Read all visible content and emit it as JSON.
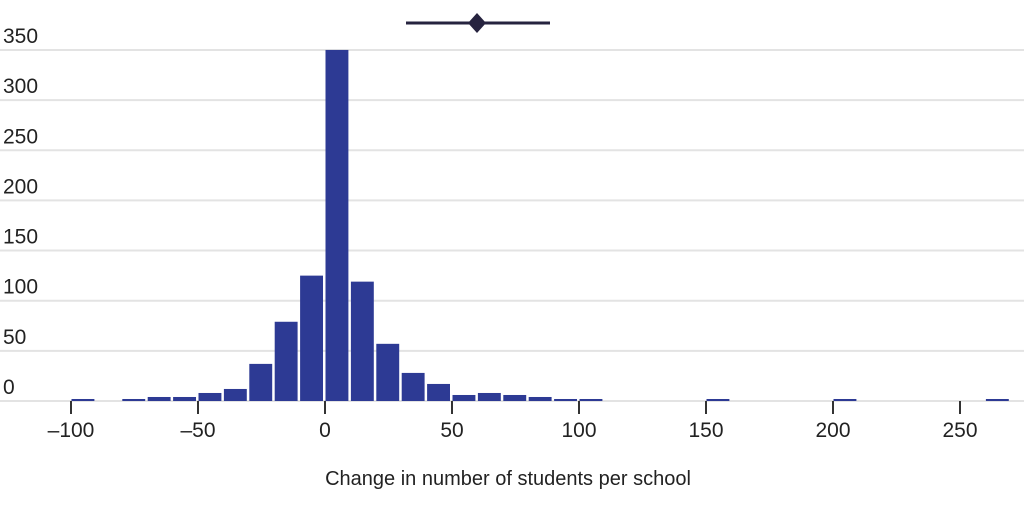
{
  "chart_data": {
    "type": "bar",
    "title": "",
    "xlabel": "Change in number of students per school",
    "ylabel": "",
    "bin_width": 10,
    "bins": [
      -100,
      -80,
      -70,
      -60,
      -50,
      -40,
      -30,
      -20,
      -10,
      0,
      10,
      20,
      30,
      40,
      50,
      60,
      70,
      80,
      90,
      100,
      150,
      200,
      260
    ],
    "values": [
      2,
      2,
      4,
      4,
      8,
      12,
      37,
      79,
      125,
      350,
      119,
      57,
      28,
      17,
      6,
      8,
      6,
      4,
      2,
      2,
      2,
      2,
      2
    ],
    "xlim": [
      -100,
      270
    ],
    "ylim": [
      0,
      350
    ],
    "xticks": [
      -100,
      -50,
      0,
      50,
      100,
      150,
      200,
      250
    ],
    "xtick_labels": [
      "–100",
      "–50",
      "0",
      "50",
      "100",
      "150",
      "200",
      "250"
    ],
    "yticks": [
      0,
      50,
      100,
      150,
      200,
      250,
      300,
      350
    ],
    "ytick_labels": [
      "0",
      "50",
      "100",
      "150",
      "200",
      "250",
      "300",
      "350"
    ],
    "grid": true,
    "legend": "top-center",
    "colors": {
      "bar": "#2d3a94",
      "legend_marker": "#26233f",
      "grid": "#e3e3e3",
      "axis_tick": "#333333"
    }
  }
}
